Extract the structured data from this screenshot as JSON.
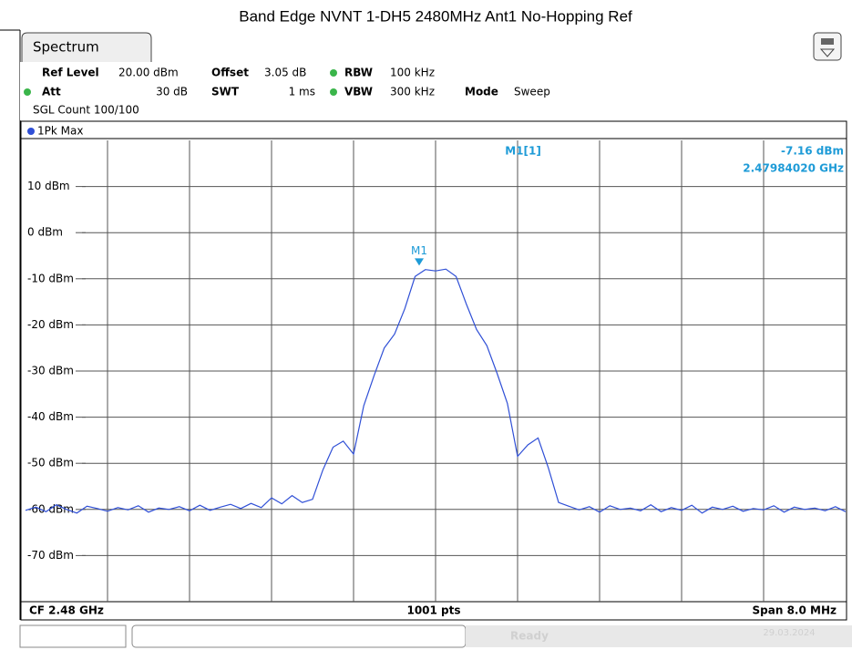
{
  "chart_data": {
    "type": "line",
    "title": "Band Edge NVNT 1-DH5 2480MHz Ant1 No-Hopping Ref",
    "tab": "Spectrum",
    "settings": {
      "ref_level_label": "Ref Level",
      "ref_level": "20.00 dBm",
      "offset_label": "Offset",
      "offset": "3.05 dB",
      "rbw_label": "RBW",
      "rbw": "100 kHz",
      "att_label": "Att",
      "att": "30 dB",
      "swt_label": "SWT",
      "swt": "1 ms",
      "vbw_label": "VBW",
      "vbw": "300 kHz",
      "mode_label": "Mode",
      "mode": "Sweep",
      "count": "SGL Count 100/100"
    },
    "trace_label": "1Pk Max",
    "marker": {
      "name": "M1",
      "readout": "M1[1]",
      "x": 2.4798402,
      "x_label": "2.47984020 GHz",
      "y": -7.16,
      "y_label": "-7.16 dBm"
    },
    "footer": {
      "left": "CF 2.48 GHz",
      "center": "1001 pts",
      "right": "Span 8.0 MHz"
    },
    "status": {
      "state": "Ready",
      "date": "29.03.2024"
    },
    "xlim": [
      2.476,
      2.484
    ],
    "ylim": [
      -80,
      20
    ],
    "yticks": [
      {
        "value": 10,
        "label": "10 dBm"
      },
      {
        "value": 0,
        "label": "0 dBm"
      },
      {
        "value": -10,
        "label": "-10 dBm"
      },
      {
        "value": -20,
        "label": "-20 dBm"
      },
      {
        "value": -30,
        "label": "-30 dBm"
      },
      {
        "value": -40,
        "label": "-40 dBm"
      },
      {
        "value": -50,
        "label": "-50 dBm"
      },
      {
        "value": -60,
        "label": "-60 dBm"
      },
      {
        "value": -70,
        "label": "-70 dBm"
      }
    ],
    "grid": true,
    "x": [
      2.476,
      2.4761,
      2.4762,
      2.4763,
      2.4764,
      2.4765,
      2.4766,
      2.4767,
      2.4768,
      2.4769,
      2.477,
      2.4771,
      2.4772,
      2.4773,
      2.4774,
      2.4775,
      2.4776,
      2.4777,
      2.4778,
      2.4779,
      2.478,
      2.4781,
      2.4782,
      2.4783,
      2.4784,
      2.4785,
      2.4786,
      2.4787,
      2.4788,
      2.4789,
      2.479,
      2.4791,
      2.4792,
      2.4793,
      2.4794,
      2.4795,
      2.4796,
      2.4797,
      2.4798,
      2.4799,
      2.48,
      2.4801,
      2.4802,
      2.4803,
      2.4804,
      2.4805,
      2.4806,
      2.4807,
      2.4808,
      2.4809,
      2.481,
      2.4811,
      2.4812,
      2.4813,
      2.4814,
      2.4815,
      2.4816,
      2.4817,
      2.4818,
      2.4819,
      2.482,
      2.4821,
      2.4822,
      2.4823,
      2.4824,
      2.4825,
      2.4826,
      2.4827,
      2.4828,
      2.4829,
      2.483,
      2.4831,
      2.4832,
      2.4833,
      2.4834,
      2.4835,
      2.4836,
      2.4837,
      2.4838,
      2.4839,
      2.484
    ],
    "series": [
      {
        "name": "1Pk Max",
        "color": "#2f4fd6",
        "values": [
          -60.2,
          -59.5,
          -60.5,
          -59.0,
          -60.0,
          -60.8,
          -59.3,
          -59.8,
          -60.4,
          -59.6,
          -60.1,
          -59.2,
          -60.6,
          -59.7,
          -60.0,
          -59.4,
          -60.3,
          -59.1,
          -60.2,
          -59.5,
          -58.9,
          -59.8,
          -58.7,
          -59.6,
          -57.5,
          -58.8,
          -57.0,
          -58.5,
          -57.8,
          -51.5,
          -46.5,
          -45.2,
          -48.0,
          -37.5,
          -31.0,
          -25.0,
          -22.0,
          -16.5,
          -9.5,
          -8.0,
          -8.3,
          -7.9,
          -9.5,
          -15.5,
          -21.0,
          -24.5,
          -30.5,
          -37.0,
          -48.5,
          -46.0,
          -44.5,
          -51.0,
          -58.5,
          -59.3,
          -60.1,
          -59.4,
          -60.6,
          -59.2,
          -60.0,
          -59.7,
          -60.3,
          -59.0,
          -60.5,
          -59.6,
          -60.2,
          -59.1,
          -60.8,
          -59.5,
          -60.0,
          -59.3,
          -60.4,
          -59.8,
          -60.1,
          -59.2,
          -60.6,
          -59.5,
          -60.0,
          -59.7,
          -60.3,
          -59.4,
          -60.5
        ]
      }
    ]
  }
}
